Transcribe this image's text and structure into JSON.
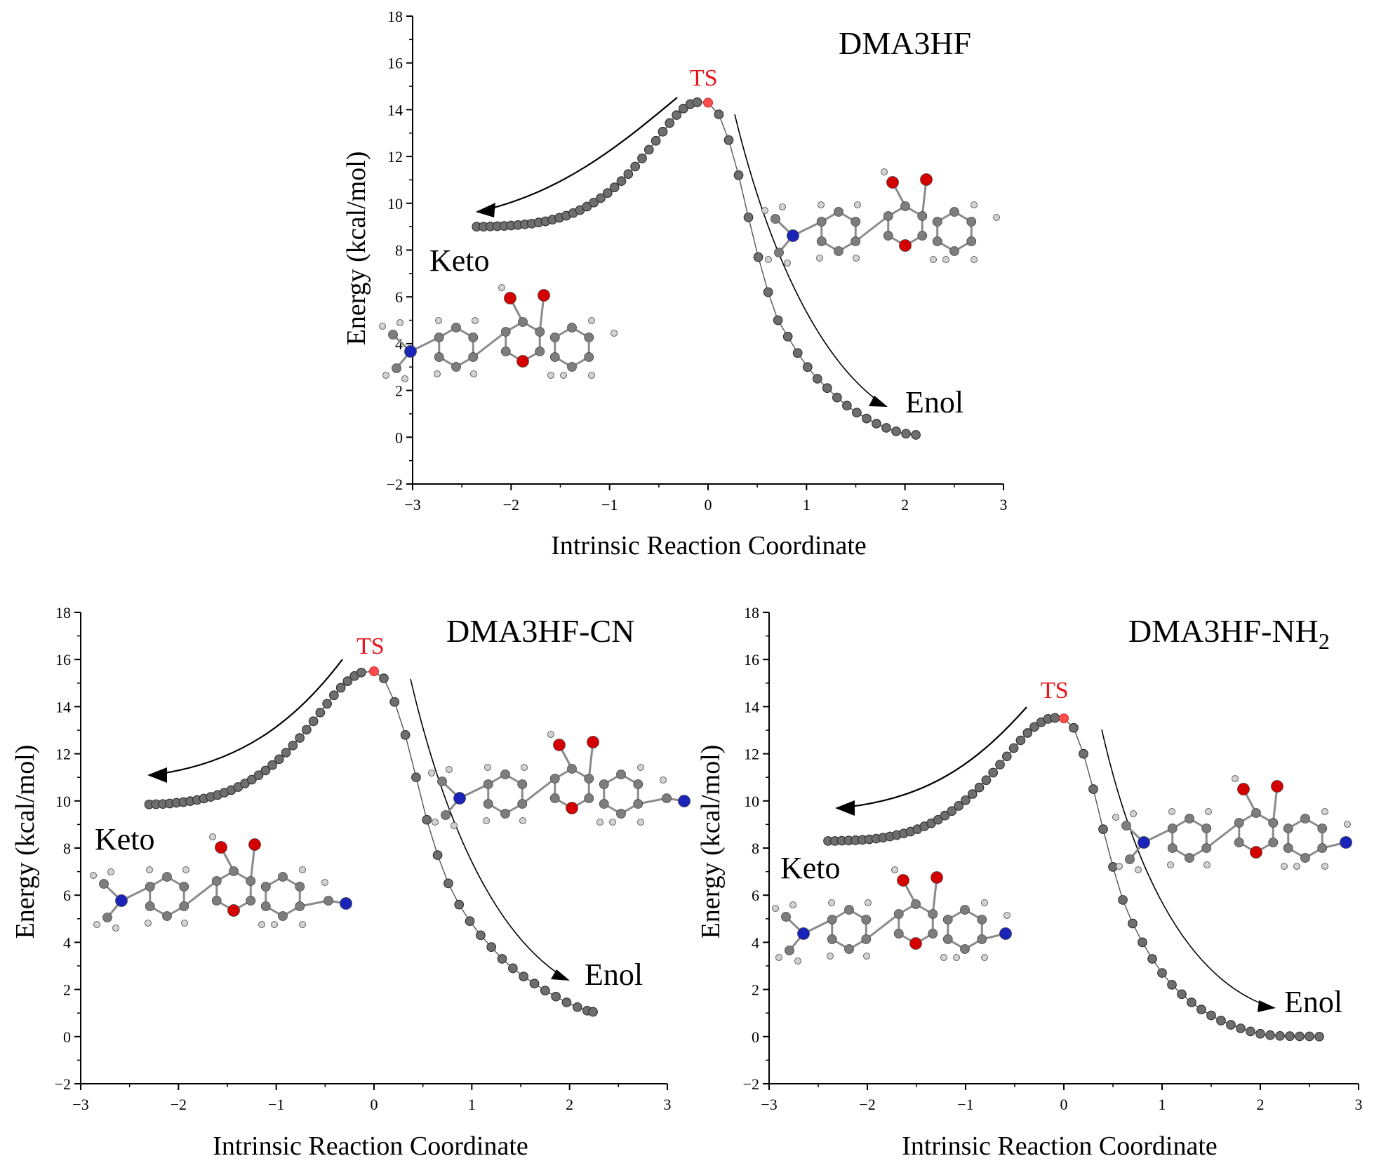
{
  "colors": {
    "point": "#6e6e6e",
    "point_edge": "#2e2e2e",
    "line": "#555555",
    "ts": "#ff4d4d",
    "ts_text": "#e8141b",
    "oxygen": "#d40000",
    "nitrogen": "#1a24b8",
    "carbon": "#7d7d7d",
    "hydrogen": "#d2d2d2",
    "arrow": "#000000"
  },
  "chart_data": [
    {
      "type": "scatter",
      "title": "DMA3HF",
      "xlabel": "Intrinsic Reaction Coordinate",
      "ylabel": "Energy (kcal/mol)",
      "xlim": [
        -3,
        3
      ],
      "ylim": [
        -2,
        18
      ],
      "xticks": [
        "−3",
        "−2",
        "−1",
        "0",
        "1",
        "2",
        "3"
      ],
      "yticks": [
        "−2",
        "0",
        "2",
        "4",
        "6",
        "8",
        "10",
        "12",
        "14",
        "16",
        "18"
      ],
      "ts_label": "TS",
      "keto_label": "Keto",
      "enol_label": "Enol",
      "ts": {
        "x": 0.0,
        "y": 14.3
      },
      "series": [
        {
          "name": "keto branch",
          "x": [
            -2.35,
            -2.28,
            -2.21,
            -2.14,
            -2.07,
            -2.0,
            -1.93,
            -1.86,
            -1.79,
            -1.72,
            -1.65,
            -1.58,
            -1.51,
            -1.44,
            -1.37,
            -1.3,
            -1.23,
            -1.16,
            -1.09,
            -1.02,
            -0.95,
            -0.88,
            -0.81,
            -0.74,
            -0.67,
            -0.6,
            -0.53,
            -0.46,
            -0.39,
            -0.32,
            -0.25,
            -0.18,
            -0.11
          ],
          "y": [
            9.0,
            9.0,
            9.01,
            9.02,
            9.03,
            9.05,
            9.07,
            9.1,
            9.13,
            9.18,
            9.23,
            9.3,
            9.38,
            9.47,
            9.58,
            9.71,
            9.86,
            10.03,
            10.22,
            10.44,
            10.68,
            10.95,
            11.25,
            11.57,
            11.92,
            12.29,
            12.67,
            13.06,
            13.43,
            13.77,
            14.05,
            14.24,
            14.32
          ]
        },
        {
          "name": "enol branch",
          "x": [
            0.11,
            0.21,
            0.31,
            0.41,
            0.51,
            0.61,
            0.71,
            0.81,
            0.91,
            1.01,
            1.11,
            1.21,
            1.31,
            1.41,
            1.51,
            1.61,
            1.71,
            1.81,
            1.91,
            2.01,
            2.11
          ],
          "y": [
            13.8,
            12.7,
            11.2,
            9.4,
            7.7,
            6.2,
            5.0,
            4.3,
            3.6,
            3.0,
            2.5,
            2.1,
            1.7,
            1.35,
            1.05,
            0.8,
            0.58,
            0.4,
            0.25,
            0.15,
            0.1
          ]
        }
      ]
    },
    {
      "type": "scatter",
      "title": "DMA3HF-CN",
      "xlabel": "Intrinsic Reaction Coordinate",
      "ylabel": "Energy (kcal/mol)",
      "xlim": [
        -3,
        3
      ],
      "ylim": [
        -2,
        18
      ],
      "xticks": [
        "−3",
        "−2",
        "−1",
        "0",
        "1",
        "2",
        "3"
      ],
      "yticks": [
        "−2",
        "0",
        "2",
        "4",
        "6",
        "8",
        "10",
        "12",
        "14",
        "16",
        "18"
      ],
      "ts_label": "TS",
      "keto_label": "Keto",
      "enol_label": "Enol",
      "ts": {
        "x": 0.0,
        "y": 15.5
      },
      "series": [
        {
          "name": "keto branch",
          "x": [
            -2.3,
            -2.23,
            -2.16,
            -2.09,
            -2.02,
            -1.95,
            -1.88,
            -1.81,
            -1.74,
            -1.67,
            -1.6,
            -1.53,
            -1.46,
            -1.39,
            -1.32,
            -1.25,
            -1.18,
            -1.11,
            -1.04,
            -0.97,
            -0.9,
            -0.83,
            -0.76,
            -0.69,
            -0.62,
            -0.55,
            -0.48,
            -0.41,
            -0.34,
            -0.27,
            -0.2,
            -0.13
          ],
          "y": [
            9.85,
            9.86,
            9.87,
            9.89,
            9.92,
            9.95,
            9.99,
            10.04,
            10.1,
            10.17,
            10.25,
            10.35,
            10.46,
            10.59,
            10.74,
            10.9,
            11.09,
            11.29,
            11.52,
            11.77,
            12.05,
            12.35,
            12.67,
            13.02,
            13.38,
            13.75,
            14.12,
            14.48,
            14.8,
            15.08,
            15.3,
            15.45
          ]
        },
        {
          "name": "enol branch",
          "x": [
            0.1,
            0.21,
            0.32,
            0.43,
            0.54,
            0.65,
            0.76,
            0.87,
            0.98,
            1.09,
            1.2,
            1.31,
            1.42,
            1.53,
            1.64,
            1.75,
            1.86,
            1.97,
            2.08,
            2.18,
            2.24
          ],
          "y": [
            15.2,
            14.2,
            12.8,
            11.0,
            9.2,
            7.7,
            6.5,
            5.6,
            4.9,
            4.3,
            3.8,
            3.3,
            2.9,
            2.55,
            2.25,
            1.95,
            1.7,
            1.45,
            1.25,
            1.1,
            1.05
          ]
        }
      ]
    },
    {
      "type": "scatter",
      "title": "DMA3HF-NH",
      "title_sub": "2",
      "xlabel": "Intrinsic Reaction Coordinate",
      "ylabel": "Energy (kcal/mol)",
      "xlim": [
        -3,
        3
      ],
      "ylim": [
        -2,
        18
      ],
      "xticks": [
        "−3",
        "−2",
        "−1",
        "0",
        "1",
        "2",
        "3"
      ],
      "yticks": [
        "−2",
        "0",
        "2",
        "4",
        "6",
        "8",
        "10",
        "12",
        "14",
        "16",
        "18"
      ],
      "ts_label": "TS",
      "keto_label": "Keto",
      "enol_label": "Enol",
      "ts": {
        "x": 0.0,
        "y": 13.5
      },
      "series": [
        {
          "name": "keto branch",
          "x": [
            -2.4,
            -2.33,
            -2.26,
            -2.19,
            -2.12,
            -2.05,
            -1.98,
            -1.91,
            -1.84,
            -1.77,
            -1.7,
            -1.63,
            -1.56,
            -1.49,
            -1.42,
            -1.35,
            -1.28,
            -1.21,
            -1.14,
            -1.07,
            -1.0,
            -0.93,
            -0.86,
            -0.79,
            -0.72,
            -0.65,
            -0.58,
            -0.51,
            -0.44,
            -0.37,
            -0.3,
            -0.23,
            -0.16,
            -0.09
          ],
          "y": [
            8.3,
            8.3,
            8.31,
            8.32,
            8.33,
            8.35,
            8.37,
            8.4,
            8.44,
            8.49,
            8.55,
            8.62,
            8.7,
            8.8,
            8.92,
            9.05,
            9.2,
            9.38,
            9.57,
            9.79,
            10.03,
            10.29,
            10.57,
            10.88,
            11.2,
            11.54,
            11.89,
            12.24,
            12.57,
            12.88,
            13.14,
            13.34,
            13.48,
            13.52
          ]
        },
        {
          "name": "enol branch",
          "x": [
            0.1,
            0.2,
            0.3,
            0.4,
            0.5,
            0.6,
            0.7,
            0.8,
            0.9,
            1.0,
            1.1,
            1.2,
            1.3,
            1.4,
            1.5,
            1.6,
            1.7,
            1.8,
            1.9,
            2.0,
            2.1,
            2.2,
            2.3,
            2.4,
            2.5,
            2.6
          ],
          "y": [
            13.1,
            12.0,
            10.5,
            8.8,
            7.2,
            5.8,
            4.8,
            4.0,
            3.3,
            2.7,
            2.2,
            1.8,
            1.45,
            1.15,
            0.9,
            0.68,
            0.5,
            0.35,
            0.22,
            0.12,
            0.06,
            0.03,
            0.02,
            0.01,
            0.01,
            0.0
          ]
        }
      ]
    }
  ]
}
